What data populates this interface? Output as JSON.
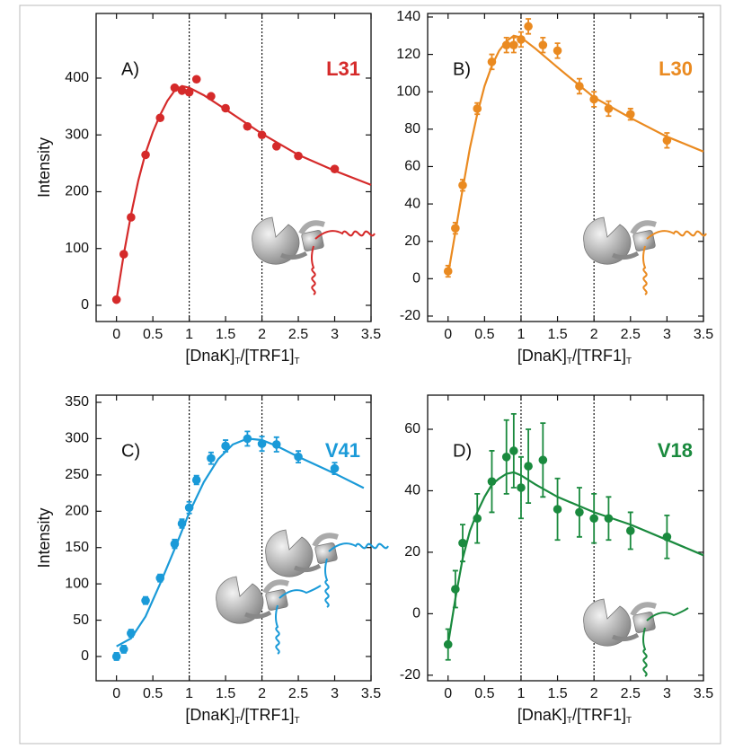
{
  "chart_data": [
    {
      "type": "scatter",
      "panel": "A)",
      "title": "L31",
      "color": "#d52a2a",
      "ylabel": "Intensity",
      "xlabel": [
        "[DnaK]",
        "T",
        "/[TRF1]",
        "T"
      ],
      "x": [
        0,
        0.1,
        0.2,
        0.4,
        0.6,
        0.8,
        0.9,
        1.0,
        1.1,
        1.3,
        1.5,
        1.8,
        2.0,
        2.2,
        2.5,
        3.0
      ],
      "values": [
        10,
        90,
        155,
        265,
        330,
        383,
        378,
        375,
        398,
        368,
        347,
        315,
        300,
        280,
        263,
        240
      ],
      "fit": {
        "x": [
          0,
          0.1,
          0.2,
          0.3,
          0.4,
          0.5,
          0.6,
          0.7,
          0.8,
          0.9,
          1.0,
          1.2,
          1.5,
          2.0,
          2.5,
          3.0,
          3.5
        ],
        "y": [
          10,
          90,
          160,
          220,
          268,
          305,
          335,
          360,
          378,
          386,
          383,
          370,
          345,
          302,
          265,
          237,
          212
        ]
      },
      "vlines": [
        1,
        2
      ],
      "xlim": [
        -0.28,
        3.5
      ],
      "xticks": [
        0,
        0.5,
        1,
        1.5,
        2,
        2.5,
        3,
        3.5
      ],
      "ylim": [
        -28.5,
        513.8
      ],
      "yticks": [
        0,
        100,
        200,
        300,
        400
      ]
    },
    {
      "type": "scatter",
      "panel": "B)",
      "title": "L30",
      "color": "#ea8a20",
      "xlabel": [
        "[DnaK]",
        "T",
        "/[TRF1]",
        "T"
      ],
      "x": [
        0,
        0.1,
        0.2,
        0.4,
        0.6,
        0.8,
        0.9,
        1.0,
        1.1,
        1.3,
        1.5,
        1.8,
        2.0,
        2.2,
        2.5,
        3.0
      ],
      "values": [
        4,
        27,
        50,
        91,
        116,
        125,
        125,
        128,
        135,
        125,
        122,
        103,
        96,
        91,
        88,
        74
      ],
      "errors": [
        3,
        3,
        3,
        3,
        4,
        4,
        4,
        4,
        4,
        4,
        4,
        4,
        4,
        4,
        3,
        4
      ],
      "fit": {
        "x": [
          0,
          0.1,
          0.2,
          0.3,
          0.4,
          0.5,
          0.6,
          0.7,
          0.8,
          0.9,
          1.0,
          1.2,
          1.5,
          2.0,
          2.5,
          3.0,
          3.5
        ],
        "y": [
          2,
          25,
          48,
          70,
          88,
          103,
          114,
          122,
          127,
          130,
          129,
          123,
          113,
          97,
          86,
          76,
          68
        ]
      },
      "vlines": [
        1,
        2
      ],
      "xlim": [
        -0.28,
        3.5
      ],
      "xticks": [
        0,
        0.5,
        1,
        1.5,
        2,
        2.5,
        3,
        3.5
      ],
      "ylim": [
        -22.9,
        141.9
      ],
      "yticks": [
        -20,
        0,
        20,
        40,
        60,
        80,
        100,
        120,
        140
      ]
    },
    {
      "type": "scatter",
      "panel": "C)",
      "title": "V41",
      "color": "#1a9ad8",
      "ylabel": "Intensity",
      "xlabel": [
        "[DnaK]",
        "T",
        "/[TRF1]",
        "T"
      ],
      "x": [
        0,
        0.1,
        0.2,
        0.4,
        0.6,
        0.8,
        0.9,
        1.0,
        1.1,
        1.3,
        1.5,
        1.8,
        2.0,
        2.2,
        2.5,
        3.0
      ],
      "values": [
        0,
        10,
        32,
        77,
        108,
        155,
        183,
        205,
        243,
        273,
        290,
        300,
        293,
        292,
        275,
        259
      ],
      "errors": [
        5,
        5,
        5,
        5,
        5,
        6,
        6,
        8,
        6,
        8,
        8,
        10,
        10,
        10,
        8,
        8
      ],
      "fit": {
        "x": [
          0,
          0.2,
          0.4,
          0.6,
          0.8,
          1.0,
          1.2,
          1.4,
          1.6,
          1.8,
          2.0,
          2.2,
          2.5,
          3.0,
          3.4
        ],
        "y": [
          14,
          25,
          55,
          100,
          148,
          198,
          240,
          272,
          292,
          300,
          298,
          290,
          275,
          252,
          232
        ]
      },
      "vlines": [
        1,
        2
      ],
      "xlim": [
        -0.28,
        3.5
      ],
      "xticks": [
        0,
        0.5,
        1,
        1.5,
        2,
        2.5,
        3,
        3.5
      ],
      "ylim": [
        -33.4,
        359.9
      ],
      "yticks": [
        0,
        50,
        100,
        150,
        200,
        250,
        300,
        350
      ]
    },
    {
      "type": "scatter",
      "panel": "D)",
      "title": "V18",
      "color": "#1a8a3e",
      "xlabel": [
        "[DnaK]",
        "T",
        "/[TRF1]",
        "T"
      ],
      "x": [
        0,
        0.1,
        0.2,
        0.4,
        0.6,
        0.8,
        0.9,
        1.0,
        1.1,
        1.3,
        1.5,
        1.8,
        2.0,
        2.2,
        2.5,
        3.0
      ],
      "values": [
        -10,
        8,
        23,
        31,
        43,
        51,
        53,
        41,
        48,
        50,
        34,
        33,
        31,
        31,
        27,
        25
      ],
      "errors": [
        5,
        6,
        6,
        8,
        10,
        12,
        12,
        10,
        12,
        12,
        10,
        8,
        8,
        7,
        6,
        7
      ],
      "fit": {
        "x": [
          0,
          0.1,
          0.2,
          0.3,
          0.4,
          0.5,
          0.6,
          0.7,
          0.8,
          0.9,
          1.0,
          1.2,
          1.5,
          2.0,
          2.5,
          3.0,
          3.5
        ],
        "y": [
          -10,
          5,
          18,
          27,
          33,
          38,
          42,
          44,
          45.5,
          46,
          45,
          42,
          38,
          33,
          29,
          24,
          19
        ]
      },
      "vlines": [
        1,
        2
      ],
      "xlim": [
        -0.28,
        3.5
      ],
      "xticks": [
        0,
        0.5,
        1,
        1.5,
        2,
        2.5,
        3,
        3.5
      ],
      "ylim": [
        -21.8,
        71.1
      ],
      "yticks": [
        -20,
        0,
        20,
        40,
        60
      ]
    }
  ]
}
